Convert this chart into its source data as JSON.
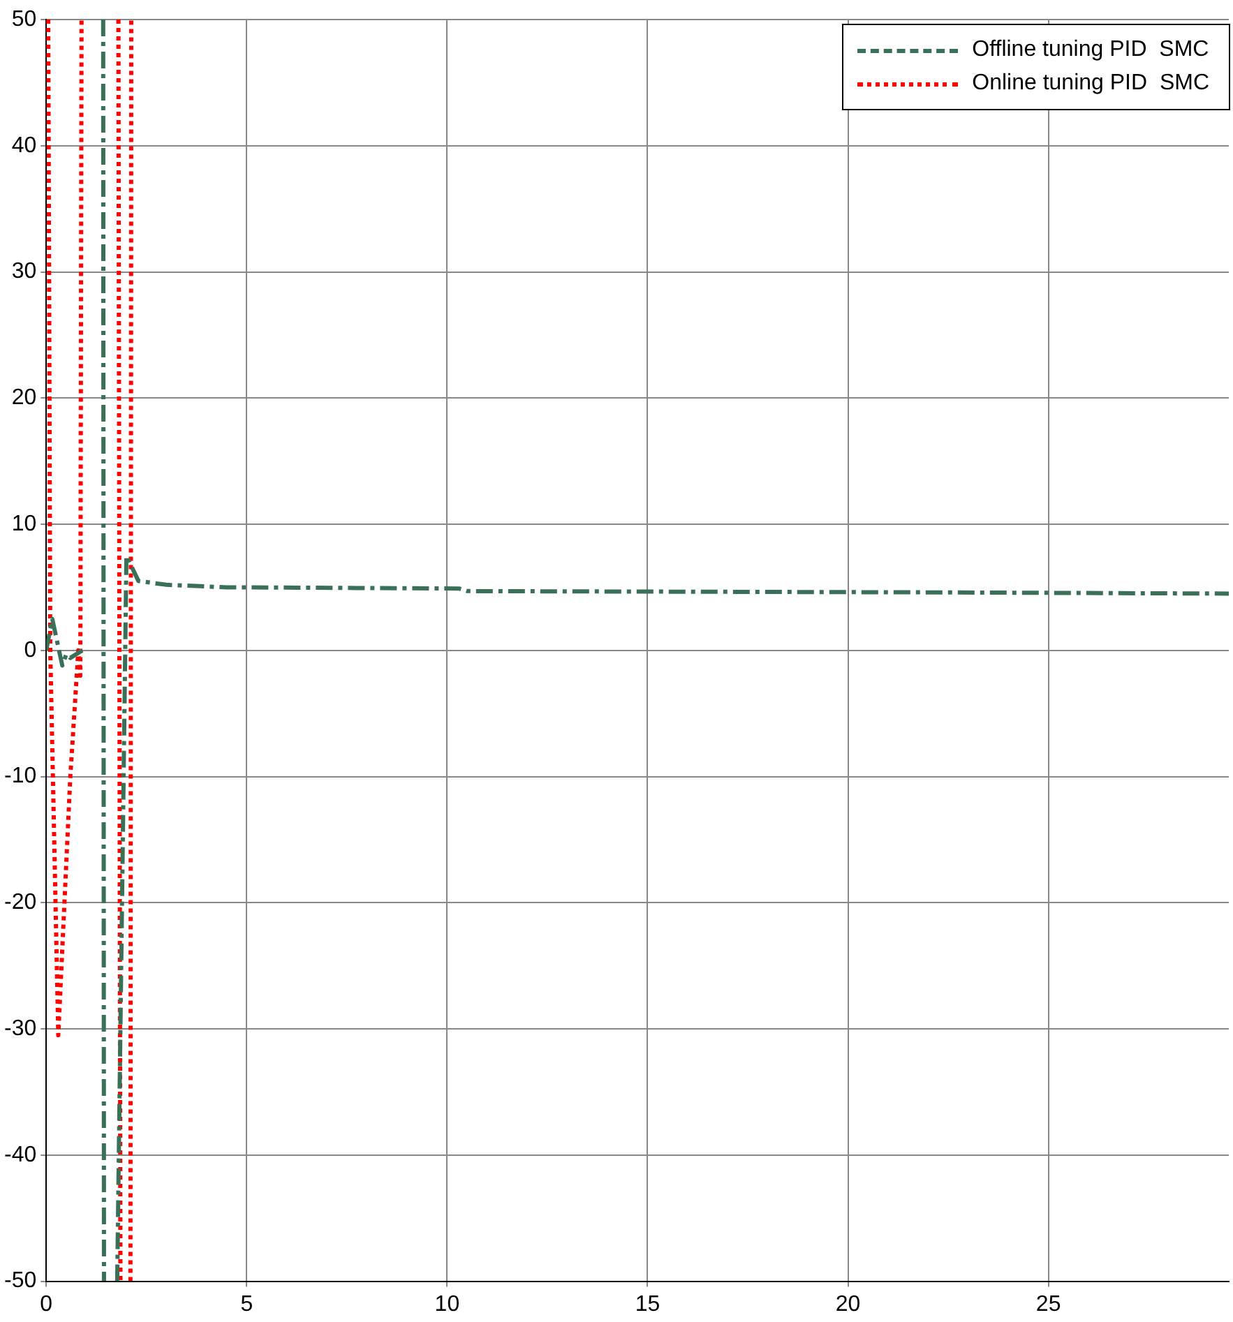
{
  "chart_data": {
    "type": "line",
    "series": [
      {
        "name": "Offline tuning PID  SMC",
        "color": "#3a7057",
        "line_style": "dashed",
        "x": [
          0,
          0.15,
          0.4,
          0.5,
          0.6,
          0.9,
          null,
          1.42,
          1.44,
          null,
          1.77,
          2.0,
          2.3,
          3,
          4.5,
          10.3,
          10.5,
          22,
          29.5
        ],
        "values": [
          0,
          2.5,
          -1.2,
          -0.3,
          -0.6,
          0,
          null,
          50,
          -50,
          null,
          -50,
          7.5,
          5.5,
          5.2,
          5.0,
          4.9,
          4.7,
          4.6,
          4.5
        ]
      },
      {
        "name": "Online tuning PID  SMC",
        "color": "#ff0000",
        "line_style": "dotted",
        "x": [
          0.05,
          0.1,
          0.3,
          0.6,
          0.8,
          0.85,
          0.88,
          null,
          1.8,
          1.85,
          null,
          2.1,
          2.12
        ],
        "values": [
          50,
          0,
          -30.5,
          -10,
          0,
          -2,
          50,
          null,
          50,
          -50,
          null,
          -50,
          50
        ]
      }
    ],
    "xlim": [
      0,
      29.5
    ],
    "xticks": [
      0,
      5,
      10,
      15,
      20,
      25
    ],
    "ylim": [
      -50,
      50
    ],
    "yticks": [
      -50,
      -40,
      -30,
      -20,
      -10,
      0,
      10,
      20,
      30,
      40,
      50
    ],
    "grid": true,
    "legend": "top right",
    "marker": "none"
  }
}
